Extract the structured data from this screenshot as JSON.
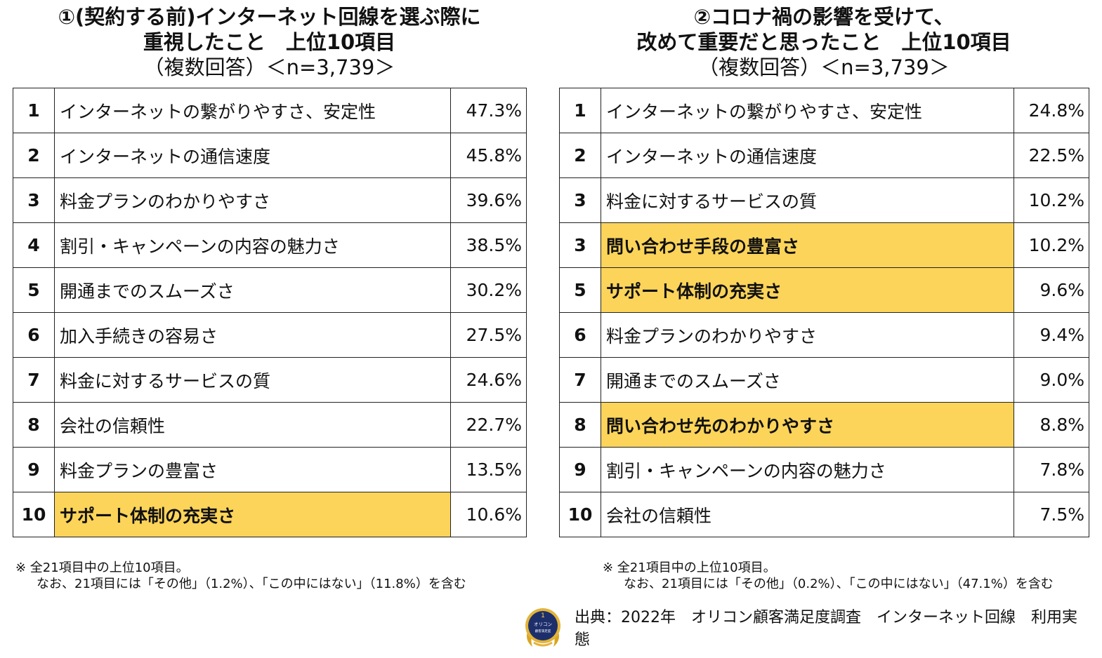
{
  "colors": {
    "highlight": "#fcd45a",
    "border": "#222222",
    "text": "#111111"
  },
  "chart_data": [
    {
      "type": "table",
      "title": "①(契約する前)インターネット回線を選ぶ際に",
      "title_line2": "重視したこと　上位10項目",
      "subtitle": "（複数回答）＜n=3,739＞",
      "rows": [
        {
          "rank": "1",
          "label": "インターネットの繋がりやすさ、安定性",
          "value": "47.3%",
          "highlight": false
        },
        {
          "rank": "2",
          "label": "インターネットの通信速度",
          "value": "45.8%",
          "highlight": false
        },
        {
          "rank": "3",
          "label": "料金プランのわかりやすさ",
          "value": "39.6%",
          "highlight": false
        },
        {
          "rank": "4",
          "label": "割引・キャンペーンの内容の魅力さ",
          "value": "38.5%",
          "highlight": false
        },
        {
          "rank": "5",
          "label": "開通までのスムーズさ",
          "value": "30.2%",
          "highlight": false
        },
        {
          "rank": "6",
          "label": "加入手続きの容易さ",
          "value": "27.5%",
          "highlight": false
        },
        {
          "rank": "7",
          "label": "料金に対するサービスの質",
          "value": "24.6%",
          "highlight": false
        },
        {
          "rank": "8",
          "label": "会社の信頼性",
          "value": "22.7%",
          "highlight": false
        },
        {
          "rank": "9",
          "label": "料金プランの豊富さ",
          "value": "13.5%",
          "highlight": false
        },
        {
          "rank": "10",
          "label": "サポート体制の充実さ",
          "value": "10.6%",
          "highlight": true
        }
      ],
      "note_line1": "※ 全21項目中の上位10項目。",
      "note_line2": "なお、21項目には「その他」（1.2%）、「この中にはない」（11.8%）を含む"
    },
    {
      "type": "table",
      "title": "②コロナ禍の影響を受けて、",
      "title_line2": "改めて重要だと思ったこと　上位10項目",
      "subtitle": "（複数回答）＜n=3,739＞",
      "rows": [
        {
          "rank": "1",
          "label": "インターネットの繋がりやすさ、安定性",
          "value": "24.8%",
          "highlight": false
        },
        {
          "rank": "2",
          "label": "インターネットの通信速度",
          "value": "22.5%",
          "highlight": false
        },
        {
          "rank": "3",
          "label": "料金に対するサービスの質",
          "value": "10.2%",
          "highlight": false
        },
        {
          "rank": "3",
          "label": "問い合わせ手段の豊富さ",
          "value": "10.2%",
          "highlight": true
        },
        {
          "rank": "5",
          "label": "サポート体制の充実さ",
          "value": "9.6%",
          "highlight": true
        },
        {
          "rank": "6",
          "label": "料金プランのわかりやすさ",
          "value": "9.4%",
          "highlight": false
        },
        {
          "rank": "7",
          "label": "開通までのスムーズさ",
          "value": "9.0%",
          "highlight": false
        },
        {
          "rank": "8",
          "label": "問い合わせ先のわかりやすさ",
          "value": "8.8%",
          "highlight": true
        },
        {
          "rank": "9",
          "label": "割引・キャンペーンの内容の魅力さ",
          "value": "7.8%",
          "highlight": false
        },
        {
          "rank": "10",
          "label": "会社の信頼性",
          "value": "7.5%",
          "highlight": false
        }
      ],
      "note_line1": "※ 全21項目中の上位10項目。",
      "note_line2": "なお、21項目には「その他」（0.2%）、「この中にはない」（47.1%）を含む"
    }
  ],
  "footer": {
    "source": "出典：2022年　オリコン顧客満足度調査　インターネット回線　利用実態",
    "logo_text": "オリコン 顧客満足度"
  }
}
